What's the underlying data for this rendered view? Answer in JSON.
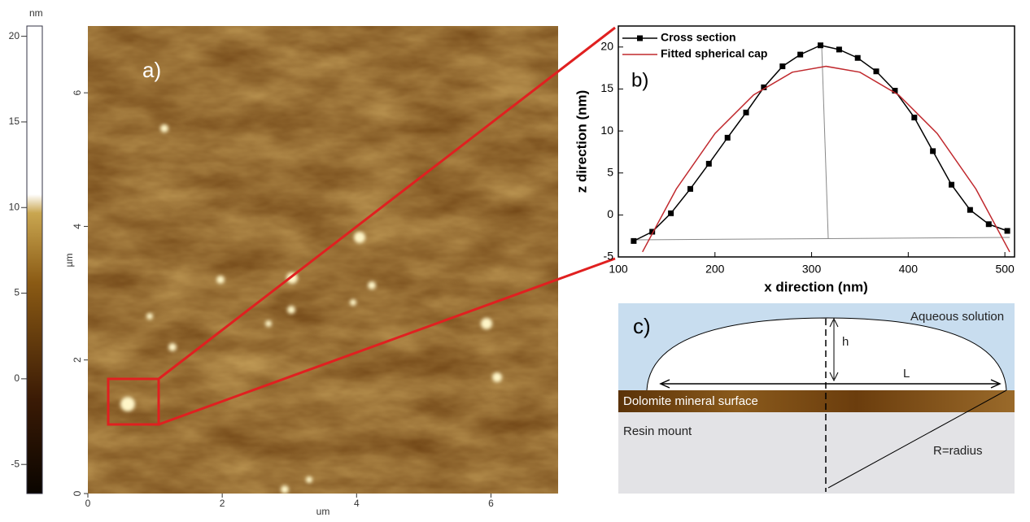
{
  "colorbar": {
    "unit": "nm",
    "ticks": [
      20,
      15,
      10,
      5,
      0,
      -5
    ],
    "lim": [
      -6.7,
      20.6
    ]
  },
  "afm_image": {
    "label": "a)",
    "xlabel": "um",
    "ylabel": "µm",
    "xlim": [
      0,
      7
    ],
    "ylim": [
      0,
      7
    ],
    "xticks": [
      0,
      2,
      4,
      6
    ],
    "yticks": [
      0,
      2,
      4,
      6
    ]
  },
  "chart_data": {
    "type": "line",
    "label": "b)",
    "x_label": "x direction (nm)",
    "y_label": "z direction (nm)",
    "xlim": [
      100,
      510
    ],
    "ylim": [
      -5,
      22.5
    ],
    "xticks": [
      100,
      200,
      300,
      400,
      500
    ],
    "yticks": [
      -5,
      0,
      5,
      10,
      15,
      20
    ],
    "series": [
      {
        "name": "Cross section",
        "color": "#000000",
        "marker": "square",
        "x": [
          115.9,
          135.1,
          154.4,
          174.5,
          193.7,
          213.0,
          232.2,
          250.6,
          269.9,
          288.3,
          309.2,
          328.5,
          347.7,
          366.9,
          386.2,
          406.3,
          425.5,
          444.8,
          464.0,
          483.3,
          502.5
        ],
        "values": [
          -3.1,
          -2.0,
          0.2,
          3.1,
          6.1,
          9.2,
          12.2,
          15.2,
          17.7,
          19.1,
          20.2,
          19.7,
          18.7,
          17.1,
          14.8,
          11.6,
          7.6,
          3.6,
          0.6,
          -1.1,
          -1.9
        ]
      },
      {
        "name": "Fitted spherical cap",
        "color": "#c0282d",
        "marker": "none",
        "x": [
          125,
          160,
          200,
          240,
          280,
          315,
          350,
          390,
          430,
          470,
          505
        ],
        "values": [
          -4.4,
          3.1,
          9.7,
          14.3,
          17.0,
          17.7,
          17.0,
          14.3,
          9.7,
          3.1,
          -4.4
        ]
      }
    ]
  },
  "diagram": {
    "label": "c)",
    "aqueous": "Aqueous solution",
    "height": "h",
    "length": "L",
    "surface": "Dolomite mineral surface",
    "resin": "Resin mount",
    "radius": "R=radius"
  }
}
